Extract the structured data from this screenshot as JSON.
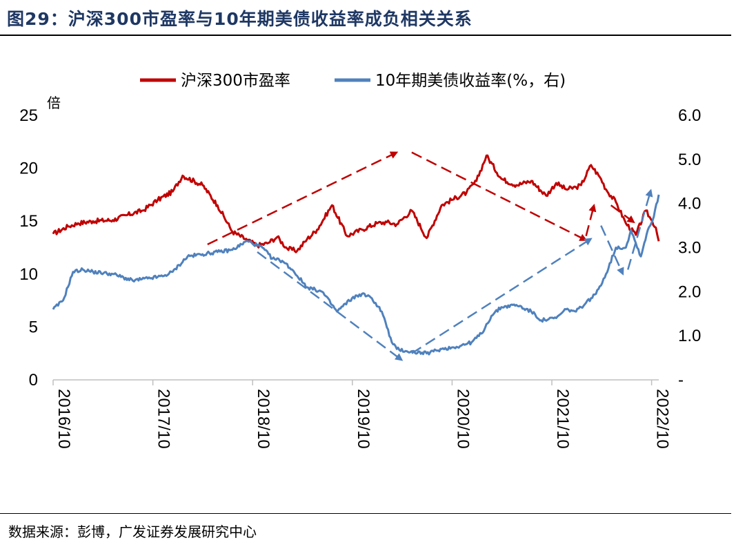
{
  "title": "图29：沪深300市盈率与10年期美债收益率成负相关关系",
  "source": "数据来源：彭博，广发证券发展研究中心",
  "chart_data": {
    "type": "line",
    "left_axis_unit": "倍",
    "left_ticks": [
      "25",
      "20",
      "15",
      "10",
      "5",
      "0"
    ],
    "left_ylim": [
      0,
      25
    ],
    "right_ticks": [
      "6.0",
      "5.0",
      "4.0",
      "3.0",
      "2.0",
      "1.0",
      "-"
    ],
    "right_ylim": [
      0,
      6
    ],
    "x_ticks": [
      "2016/10",
      "2017/10",
      "2018/10",
      "2019/10",
      "2020/10",
      "2021/10",
      "2022/10"
    ],
    "xlim": [
      2016.75,
      2022.83
    ],
    "colors": {
      "pe": "#c00000",
      "yield": "#4f81bd"
    },
    "series": [
      {
        "name": "沪深300市盈率",
        "axis": "left",
        "x": [
          2016.75,
          2016.9,
          2017.0,
          2017.15,
          2017.35,
          2017.5,
          2017.65,
          2017.8,
          2017.95,
          2018.05,
          2018.25,
          2018.4,
          2018.55,
          2018.7,
          2018.8,
          2018.9,
          2019.0,
          2019.1,
          2019.2,
          2019.3,
          2019.4,
          2019.55,
          2019.7,
          2019.85,
          2020.0,
          2020.1,
          2020.2,
          2020.35,
          2020.5,
          2020.65,
          2020.75,
          2020.9,
          2021.0,
          2021.1,
          2021.25,
          2021.4,
          2021.55,
          2021.7,
          2021.8,
          2021.9,
          2022.0,
          2022.05,
          2022.15,
          2022.25,
          2022.3,
          2022.4,
          2022.5,
          2022.6,
          2022.7,
          2022.75,
          2022.8,
          2022.83
        ],
        "values": [
          13.8,
          14.5,
          14.8,
          15.0,
          15.1,
          15.6,
          16.0,
          17.0,
          17.8,
          19.3,
          18.4,
          16.5,
          14.0,
          13.2,
          12.7,
          12.9,
          13.5,
          12.4,
          12.2,
          13.3,
          14.2,
          16.5,
          13.6,
          14.2,
          14.8,
          14.9,
          14.7,
          16.0,
          13.4,
          16.5,
          17.0,
          17.7,
          18.8,
          21.2,
          19.0,
          18.4,
          18.8,
          17.4,
          18.6,
          18.0,
          18.2,
          18.4,
          20.3,
          19.0,
          18.0,
          16.8,
          14.8,
          13.7,
          16.0,
          15.2,
          14.4,
          13.1
        ]
      },
      {
        "name": "10年期美债收益率(%，右)",
        "axis": "right",
        "x": [
          2016.75,
          2016.85,
          2016.95,
          2017.05,
          2017.15,
          2017.35,
          2017.55,
          2017.7,
          2017.85,
          2017.95,
          2018.1,
          2018.25,
          2018.4,
          2018.55,
          2018.7,
          2018.85,
          2018.95,
          2019.05,
          2019.15,
          2019.3,
          2019.45,
          2019.6,
          2019.75,
          2019.85,
          2019.95,
          2020.05,
          2020.15,
          2020.2,
          2020.3,
          2020.5,
          2020.65,
          2020.8,
          2020.95,
          2021.05,
          2021.15,
          2021.25,
          2021.4,
          2021.55,
          2021.65,
          2021.8,
          2021.9,
          2022.0,
          2022.1,
          2022.2,
          2022.3,
          2022.4,
          2022.5,
          2022.55,
          2022.6,
          2022.65,
          2022.72,
          2022.78,
          2022.83
        ],
        "values": [
          1.6,
          1.8,
          2.45,
          2.5,
          2.45,
          2.4,
          2.25,
          2.3,
          2.35,
          2.45,
          2.8,
          2.85,
          2.9,
          2.95,
          3.15,
          3.0,
          2.75,
          2.7,
          2.5,
          2.1,
          2.0,
          1.55,
          1.85,
          1.95,
          1.85,
          1.55,
          0.85,
          0.7,
          0.65,
          0.6,
          0.7,
          0.75,
          0.85,
          1.05,
          1.45,
          1.65,
          1.7,
          1.55,
          1.35,
          1.4,
          1.6,
          1.55,
          1.75,
          1.95,
          2.4,
          3.0,
          3.0,
          3.4,
          3.1,
          2.8,
          3.4,
          3.7,
          4.2
        ]
      }
    ],
    "trend_arrows": [
      {
        "color": "red",
        "from": [
          2018.3,
          12.8
        ],
        "to": [
          2020.2,
          21.5
        ]
      },
      {
        "color": "red",
        "from": [
          2020.35,
          21.5
        ],
        "to": [
          2022.1,
          13.2
        ]
      },
      {
        "color": "red",
        "from": [
          2022.1,
          13.6
        ],
        "to": [
          2022.18,
          16.5
        ]
      },
      {
        "color": "red",
        "from": [
          2022.35,
          16.5
        ],
        "to": [
          2022.58,
          14.9
        ]
      },
      {
        "color": "blue",
        "from": [
          2018.8,
          2.9
        ],
        "to": [
          2020.25,
          0.45
        ]
      },
      {
        "color": "blue",
        "from": [
          2020.35,
          0.6
        ],
        "to": [
          2022.15,
          3.2
        ]
      },
      {
        "color": "blue",
        "from": [
          2022.25,
          3.5
        ],
        "to": [
          2022.47,
          2.4
        ]
      },
      {
        "color": "blue",
        "from": [
          2022.52,
          2.5
        ],
        "to": [
          2022.75,
          4.3
        ]
      }
    ]
  }
}
